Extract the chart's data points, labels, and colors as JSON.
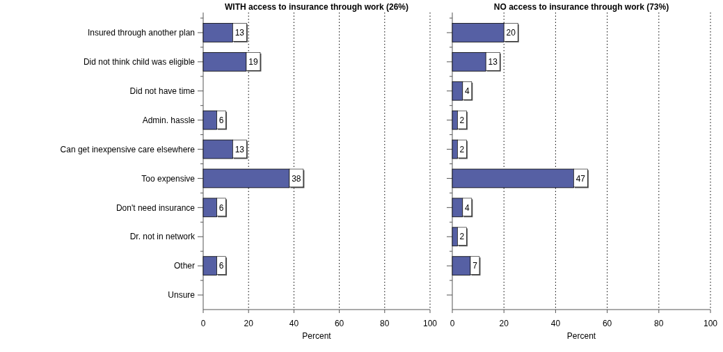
{
  "chart_data": [
    {
      "type": "bar",
      "orientation": "horizontal",
      "title": "WITH access to insurance through work (26%)",
      "xlabel": "Percent",
      "categories": [
        "Insured through another plan",
        "Did not think child was eligible",
        "Did not have time",
        "Admin. hassle",
        "Can get inexpensive care elsewhere",
        "Too expensive",
        "Don't need insurance",
        "Dr. not in network",
        "Other",
        "Unsure"
      ],
      "values": [
        13,
        19,
        null,
        6,
        13,
        38,
        6,
        null,
        6,
        null
      ],
      "color": "#5660a4",
      "xlim": [
        0,
        100
      ],
      "xticks": [
        0,
        20,
        40,
        60,
        80,
        100
      ],
      "grid": "x",
      "data_labels": true
    },
    {
      "type": "bar",
      "orientation": "horizontal",
      "title": "NO access to insurance through work (73%)",
      "xlabel": "Percent",
      "categories": [
        null,
        null,
        null,
        null,
        null,
        null,
        null,
        null,
        null,
        null
      ],
      "values": [
        20,
        13,
        4,
        2,
        2,
        47,
        4,
        2,
        7,
        null
      ],
      "color": "#5660a4",
      "xlim": [
        0,
        100
      ],
      "xticks": [
        0,
        20,
        40,
        60,
        80,
        100
      ],
      "grid": "x",
      "data_labels": true,
      "tick_labels": "x"
    }
  ]
}
